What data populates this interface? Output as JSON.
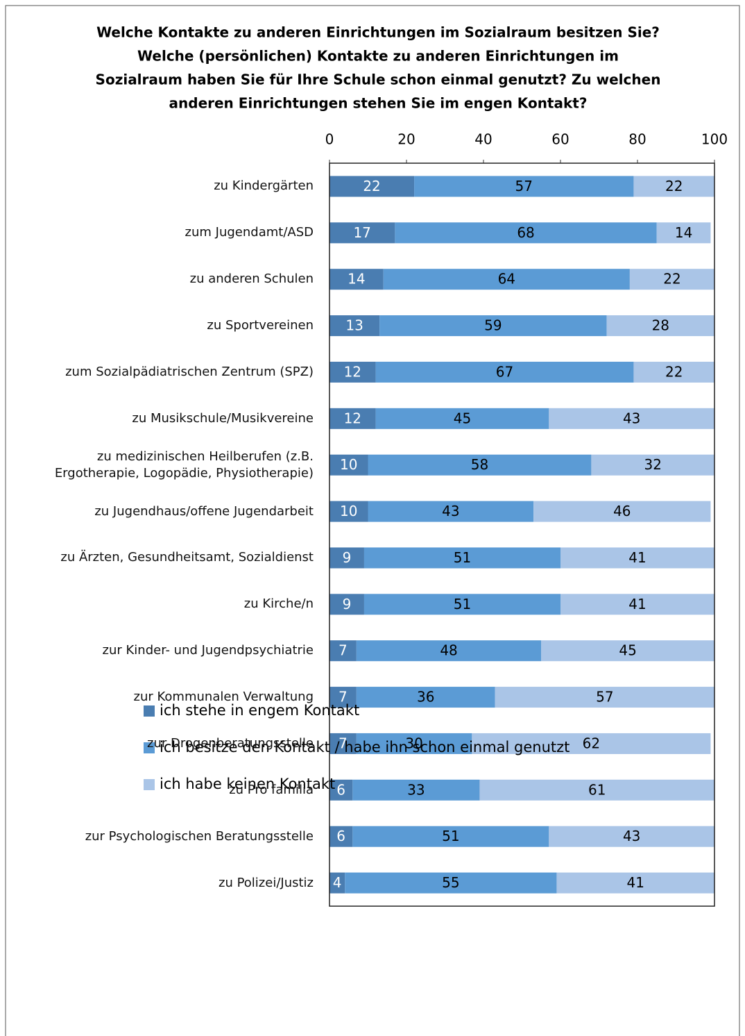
{
  "chart_data": {
    "type": "stacked_barh",
    "title": [
      "Welche Kontakte zu anderen Einrichtungen im Sozialraum besitzen Sie?",
      "Welche (persönlichen) Kontakte zu anderen Einrichtungen im",
      "Sozialraum haben Sie für Ihre Schule schon einmal genutzt? Zu welchen",
      "anderen Einrichtungen stehen Sie im engen Kontakt?"
    ],
    "categories": [
      "zu Kindergärten",
      "zum Jugendamt/ASD",
      "zu anderen Schulen",
      "zu Sportvereinen",
      "zum Sozialpädiatrischen Zentrum (SPZ)",
      "zu Musikschule/Musikvereine",
      "zu medizinischen Heilberufen (z.B. Ergotherapie, Logopädie, Physiotherapie)",
      "zu Jugendhaus/offene Jugendarbeit",
      "zu Ärzten, Gesundheitsamt, Sozialdienst",
      "zu Kirche/n",
      "zur Kinder- und Jugendpsychiatrie",
      "zur Kommunalen Verwaltung",
      "zur Drogenberatungsstelle",
      "zu Pro familia",
      "zur Psychologischen Beratungsstelle",
      "zu Polizei/Justiz"
    ],
    "series": [
      {
        "name": "ich stehe in engem Kontakt",
        "color": "#4a7db1",
        "label_color": "#ffffff",
        "values": [
          22,
          17,
          14,
          13,
          12,
          12,
          10,
          10,
          9,
          9,
          7,
          7,
          7,
          6,
          6,
          4
        ]
      },
      {
        "name": "ich besitze den Kontakt / habe ihn schon einmal genutzt",
        "color": "#5b9bd5",
        "label_color": "#000000",
        "values": [
          57,
          68,
          64,
          59,
          67,
          45,
          58,
          43,
          51,
          51,
          48,
          36,
          30,
          33,
          51,
          55
        ]
      },
      {
        "name": "ich habe keinen Kontakt",
        "color": "#aac5e7",
        "label_color": "#000000",
        "values": [
          22,
          14,
          22,
          28,
          22,
          43,
          32,
          46,
          41,
          41,
          45,
          57,
          62,
          61,
          43,
          41
        ]
      }
    ],
    "xlim": [
      0,
      100
    ],
    "xticks": [
      0,
      20,
      40,
      60,
      80,
      100
    ]
  }
}
